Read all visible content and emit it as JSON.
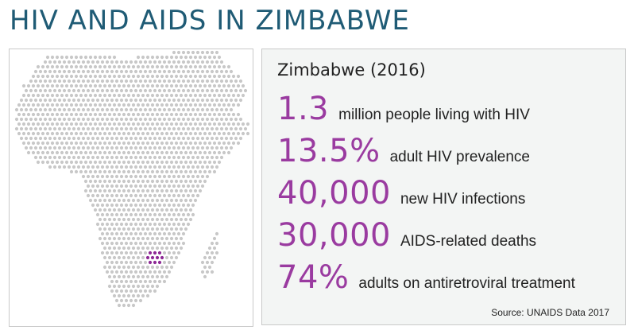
{
  "title": "HIV AND AIDS IN ZIMBABWE",
  "map": {
    "dot_color": "#c8c8c8",
    "highlight_color": "#8e2a96"
  },
  "stats": {
    "heading": "Zimbabwe (2016)",
    "items": [
      {
        "value": "1.3",
        "label": "million people living with HIV"
      },
      {
        "value": "13.5%",
        "label": "adult HIV prevalence"
      },
      {
        "value": "40,000",
        "label": "new HIV infections"
      },
      {
        "value": "30,000",
        "label": "AIDS-related deaths"
      },
      {
        "value": "74%",
        "label": "adults on antiretroviral treatment"
      }
    ],
    "accent_color": "#9a3ba0"
  },
  "source": "Source: UNAIDS Data 2017"
}
